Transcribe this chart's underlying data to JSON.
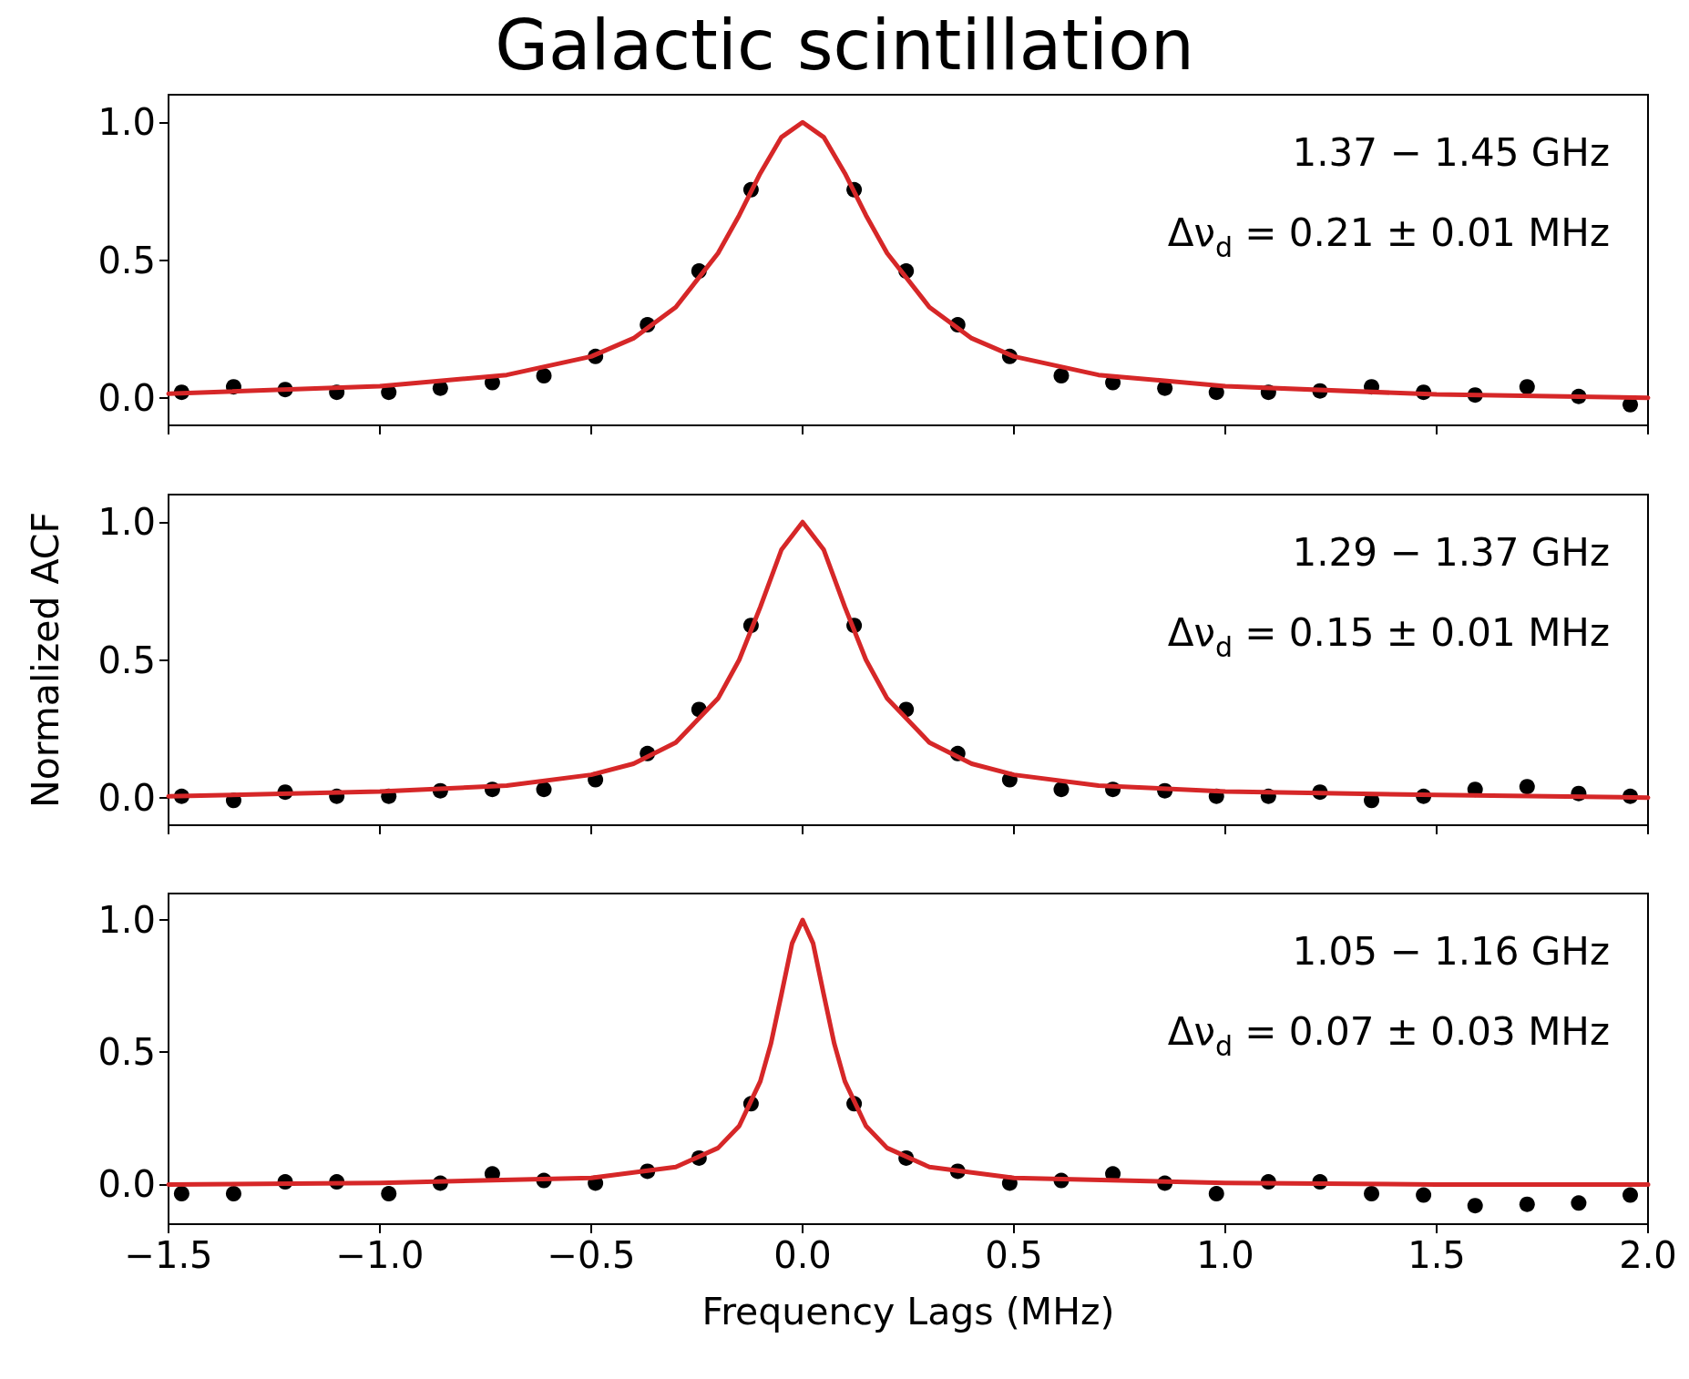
{
  "chart_data": [
    {
      "type": "scatter",
      "title": "Galactic scintillation",
      "annotations": [
        "1.37 − 1.45 GHz",
        "Δν$_{d}$ = 0.21 ± 0.01 MHz"
      ],
      "xlim": [
        -1.5,
        2.0
      ],
      "xticks": [
        -1.5,
        -1.0,
        -0.5,
        0,
        0.5,
        1.0,
        1.5,
        2.0
      ],
      "ylim": [
        -0.1,
        1.1
      ],
      "yticks": [
        {
          "value": 0,
          "label": "0.0"
        },
        {
          "value": 0.5,
          "label": "0.5"
        },
        {
          "value": 1.0,
          "label": "1.0"
        }
      ],
      "tick_labels": "y",
      "grid": false,
      "marker": "circle",
      "series": [
        {
          "color": "#000000",
          "x": [
            -1.469,
            -1.346,
            -1.224,
            -1.102,
            -0.979,
            -0.857,
            -0.734,
            -0.612,
            -0.49,
            -0.367,
            -0.245,
            -0.122,
            0.122,
            0.245,
            0.367,
            0.49,
            0.612,
            0.734,
            0.857,
            0.979,
            1.102,
            1.224,
            1.346,
            1.469,
            1.591,
            1.714,
            1.836,
            1.958
          ],
          "values": [
            0.02,
            0.04,
            0.03,
            0.02,
            0.02,
            0.035,
            0.055,
            0.08,
            0.15,
            0.265,
            0.46,
            0.755,
            0.755,
            0.46,
            0.265,
            0.15,
            0.08,
            0.055,
            0.035,
            0.02,
            0.02,
            0.025,
            0.04,
            0.02,
            0.01,
            0.04,
            0.005,
            -0.025
          ]
        },
        {
          "type": "line",
          "color": "#d62728",
          "line_style": "solid",
          "marker": "none",
          "x": [
            -1.5,
            -1.0,
            -0.7,
            -0.5,
            -0.4,
            -0.3,
            -0.2,
            -0.15,
            -0.1,
            -0.05,
            0,
            0.05,
            0.1,
            0.15,
            0.2,
            0.3,
            0.4,
            0.5,
            0.7,
            1.0,
            1.5,
            2.0
          ],
          "values": [
            0.015,
            0.042,
            0.083,
            0.15,
            0.216,
            0.329,
            0.525,
            0.662,
            0.815,
            0.946,
            1.0,
            0.946,
            0.815,
            0.662,
            0.525,
            0.329,
            0.216,
            0.15,
            0.083,
            0.042,
            0.012,
            0.0
          ]
        }
      ]
    },
    {
      "type": "scatter",
      "ylabel": "Normalized ACF",
      "annotations": [
        "1.29 − 1.37 GHz",
        "Δν$_{d}$ = 0.15 ± 0.01 MHz"
      ],
      "xlim": [
        -1.5,
        2.0
      ],
      "xticks": [
        -1.5,
        -1.0,
        -0.5,
        0,
        0.5,
        1.0,
        1.5,
        2.0
      ],
      "ylim": [
        -0.1,
        1.1
      ],
      "yticks": [
        {
          "value": 0,
          "label": "0.0"
        },
        {
          "value": 0.5,
          "label": "0.5"
        },
        {
          "value": 1.0,
          "label": "1.0"
        }
      ],
      "tick_labels": "y",
      "grid": false,
      "marker": "circle",
      "series": [
        {
          "color": "#000000",
          "x": [
            -1.469,
            -1.346,
            -1.224,
            -1.102,
            -0.979,
            -0.857,
            -0.734,
            -0.612,
            -0.49,
            -0.367,
            -0.245,
            -0.122,
            0.122,
            0.245,
            0.367,
            0.49,
            0.612,
            0.734,
            0.857,
            0.979,
            1.102,
            1.224,
            1.346,
            1.469,
            1.591,
            1.714,
            1.836,
            1.958
          ],
          "values": [
            0.005,
            -0.01,
            0.02,
            0.005,
            0.005,
            0.025,
            0.03,
            0.03,
            0.065,
            0.16,
            0.32,
            0.625,
            0.625,
            0.32,
            0.16,
            0.065,
            0.03,
            0.03,
            0.025,
            0.005,
            0.005,
            0.02,
            -0.01,
            0.005,
            0.03,
            0.04,
            0.015,
            0.005
          ]
        },
        {
          "type": "line",
          "color": "#d62728",
          "line_style": "solid",
          "marker": "none",
          "x": [
            -1.5,
            -1.0,
            -0.7,
            -0.5,
            -0.4,
            -0.3,
            -0.2,
            -0.15,
            -0.1,
            -0.05,
            0,
            0.05,
            0.1,
            0.15,
            0.2,
            0.3,
            0.4,
            0.5,
            0.7,
            1.0,
            1.5,
            2.0
          ],
          "values": [
            0.005,
            0.022,
            0.044,
            0.083,
            0.123,
            0.2,
            0.36,
            0.5,
            0.692,
            0.9,
            1.0,
            0.9,
            0.692,
            0.5,
            0.36,
            0.2,
            0.123,
            0.083,
            0.044,
            0.022,
            0.01,
            0.0
          ]
        }
      ]
    },
    {
      "type": "scatter",
      "xlabel": "Frequency Lags (MHz)",
      "annotations": [
        "1.05 − 1.16 GHz",
        "Δν$_{d}$ = 0.07 ± 0.03 MHz"
      ],
      "xlim": [
        -1.5,
        2.0
      ],
      "xticks": [
        {
          "value": -1.5,
          "label": "−1.5"
        },
        {
          "value": -1.0,
          "label": "−1.0"
        },
        {
          "value": -0.5,
          "label": "−0.5"
        },
        {
          "value": 0,
          "label": "0.0"
        },
        {
          "value": 0.5,
          "label": "0.5"
        },
        {
          "value": 1.0,
          "label": "1.0"
        },
        {
          "value": 1.5,
          "label": "1.5"
        },
        {
          "value": 2.0,
          "label": "2.0"
        }
      ],
      "ylim": [
        -0.15,
        1.1
      ],
      "yticks": [
        {
          "value": 0,
          "label": "0.0"
        },
        {
          "value": 0.5,
          "label": "0.5"
        },
        {
          "value": 1.0,
          "label": "1.0"
        }
      ],
      "grid": false,
      "marker": "circle",
      "series": [
        {
          "color": "#000000",
          "x": [
            -1.469,
            -1.346,
            -1.224,
            -1.102,
            -0.979,
            -0.857,
            -0.734,
            -0.612,
            -0.49,
            -0.367,
            -0.245,
            -0.122,
            0.122,
            0.245,
            0.367,
            0.49,
            0.612,
            0.734,
            0.857,
            0.979,
            1.102,
            1.224,
            1.346,
            1.469,
            1.591,
            1.714,
            1.836,
            1.958
          ],
          "values": [
            -0.035,
            -0.035,
            0.01,
            0.01,
            -0.035,
            0.005,
            0.04,
            0.015,
            0.005,
            0.05,
            0.1,
            0.305,
            0.305,
            0.1,
            0.05,
            0.005,
            0.015,
            0.04,
            0.005,
            -0.035,
            0.01,
            0.01,
            -0.035,
            -0.04,
            -0.08,
            -0.075,
            -0.07,
            -0.04
          ]
        },
        {
          "type": "line",
          "color": "#d62728",
          "line_style": "solid",
          "marker": "none",
          "x": [
            -1.5,
            -1.0,
            -0.5,
            -0.3,
            -0.2,
            -0.15,
            -0.1,
            -0.075,
            -0.05,
            -0.025,
            0,
            0.025,
            0.05,
            0.075,
            0.1,
            0.15,
            0.2,
            0.3,
            0.5,
            1.0,
            1.5,
            2.0
          ],
          "values": [
            0.0,
            0.006,
            0.025,
            0.066,
            0.138,
            0.221,
            0.39,
            0.532,
            0.719,
            0.911,
            1.0,
            0.911,
            0.719,
            0.532,
            0.39,
            0.221,
            0.138,
            0.066,
            0.025,
            0.006,
            0.0,
            0.0
          ]
        }
      ]
    }
  ]
}
